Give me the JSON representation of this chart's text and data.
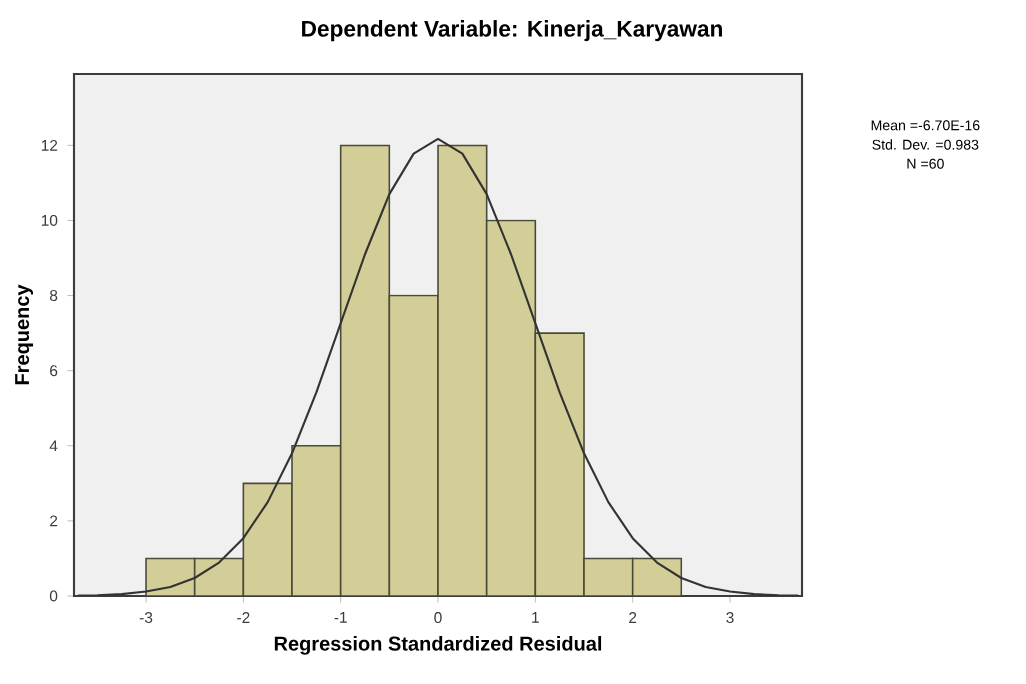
{
  "chart_data": {
    "type": "histogram",
    "title": "Dependent Variable: Kinerja_Karyawan",
    "xlabel": "Regression Standardized Residual",
    "ylabel": "Frequency",
    "bins": [
      -3,
      -2.5,
      -2,
      -1.5,
      -1,
      -0.5,
      0,
      0.5,
      1,
      1.5,
      2,
      2.5
    ],
    "values": [
      1,
      1,
      3,
      4,
      12,
      8,
      12,
      10,
      7,
      1,
      1
    ],
    "color": "#d3ce97",
    "series": [
      {
        "type": "line",
        "color": "#333333",
        "x": [
          -3.7,
          -3.5,
          -3.25,
          -3,
          -2.75,
          -2.5,
          -2.25,
          -2,
          -1.75,
          -1.5,
          -1.25,
          -1,
          -0.75,
          -0.5,
          -0.25,
          0,
          0.25,
          0.5,
          0.75,
          1,
          1.25,
          1.5,
          1.75,
          2,
          2.25,
          2.5,
          2.75,
          3,
          3.25,
          3.5,
          3.7
        ],
        "values": [
          0.01,
          0.02,
          0.05,
          0.12,
          0.24,
          0.48,
          0.89,
          1.54,
          2.5,
          3.8,
          5.42,
          7.26,
          9.1,
          10.7,
          11.78,
          12.17,
          11.78,
          10.7,
          9.1,
          7.26,
          5.42,
          3.8,
          2.5,
          1.54,
          0.89,
          0.48,
          0.24,
          0.12,
          0.05,
          0.02,
          0.01
        ]
      }
    ],
    "xlim": [
      -3.74,
      3.74
    ],
    "ylim": [
      0,
      13.9
    ],
    "xticks": [
      -3,
      -2,
      -1,
      0,
      1,
      2,
      3
    ],
    "yticks": [
      0,
      2,
      4,
      6,
      8,
      10,
      12
    ],
    "grid": false,
    "annotations": [
      "Mean =-6.70E-16",
      "Std. Dev. =0.983",
      "N =60"
    ]
  }
}
